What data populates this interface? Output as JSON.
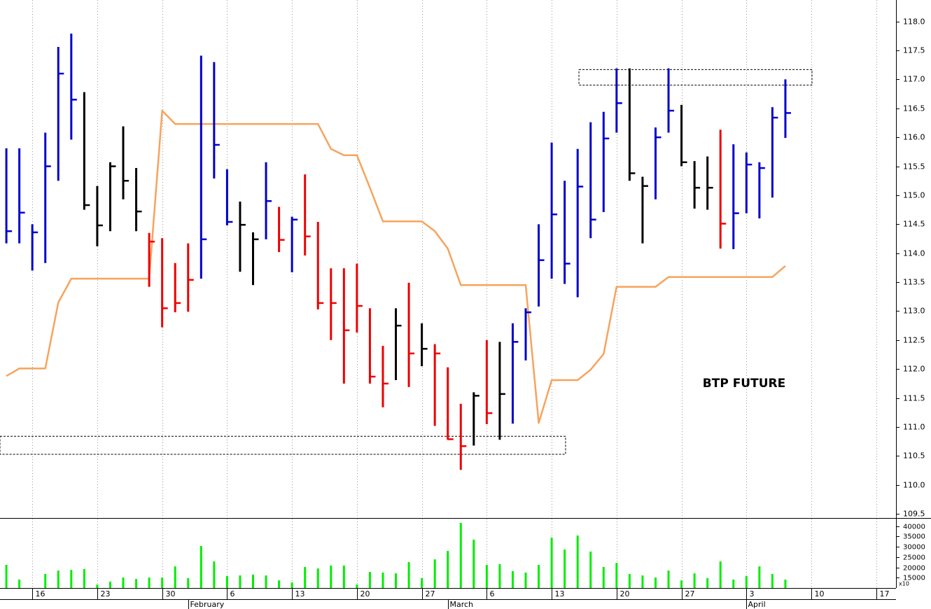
{
  "chart_data": {
    "type": "ohlc",
    "title": "BTP FUTURE",
    "xlim": [
      -0.49,
      68.52
    ],
    "xticks": [
      {
        "value": 2,
        "label": "16"
      },
      {
        "value": 7,
        "label": "23"
      },
      {
        "value": 12,
        "label": "30"
      },
      {
        "value": 17,
        "label": "6"
      },
      {
        "value": 22,
        "label": "13"
      },
      {
        "value": 27,
        "label": "20"
      },
      {
        "value": 32,
        "label": "27"
      },
      {
        "value": 37,
        "label": "6"
      },
      {
        "value": 42,
        "label": "13"
      },
      {
        "value": 47,
        "label": "20"
      },
      {
        "value": 52,
        "label": "27"
      },
      {
        "value": 57,
        "label": "3"
      },
      {
        "value": 62,
        "label": "10"
      },
      {
        "value": 67,
        "label": "17"
      }
    ],
    "month_ticks": [
      {
        "value": 14,
        "label": "February"
      },
      {
        "value": 34,
        "label": "March"
      },
      {
        "value": 57,
        "label": "April"
      }
    ],
    "grid": true,
    "ylim": [
      109.43,
      118.37
    ],
    "yticks": [
      {
        "value": 109.5,
        "label": "109.5"
      },
      {
        "value": 110,
        "label": "110.0"
      },
      110.5,
      {
        "value": 111,
        "label": "111.0"
      },
      111.5,
      {
        "value": 112,
        "label": "112.0"
      },
      112.5,
      {
        "value": 113,
        "label": "113.0"
      },
      113.5,
      {
        "value": 114,
        "label": "114.0"
      },
      114.5,
      {
        "value": 115,
        "label": "115.0"
      },
      115.5,
      {
        "value": 116,
        "label": "116.0"
      },
      116.5,
      {
        "value": 117,
        "label": "117.0"
      },
      117.5,
      {
        "value": 118,
        "label": "118.0"
      }
    ],
    "high": [
      115.81,
      115.81,
      114.5,
      116.08,
      117.56,
      117.79,
      116.78,
      115.16,
      115.57,
      116.19,
      115.47,
      114.35,
      114.26,
      113.83,
      114.17,
      117.41,
      117.3,
      115.45,
      114.89,
      114.36,
      115.57,
      114.8,
      114.63,
      115.36,
      114.54,
      113.74,
      113.74,
      113.82,
      113.05,
      112.4,
      113.05,
      113.49,
      112.79,
      112.43,
      112.03,
      111.4,
      111.6,
      112.5,
      112.47,
      112.79,
      113.05,
      114.5,
      115.91,
      115.25,
      115.8,
      116.26,
      116.44,
      117.19,
      117.19,
      115.32,
      116.17,
      117.19,
      116.56,
      115.59,
      115.67,
      116.13,
      115.88,
      115.74,
      115.57,
      116.52,
      117.0
    ],
    "low": [
      114.17,
      114.17,
      113.7,
      113.83,
      115.25,
      115.96,
      114.75,
      114.12,
      114.38,
      114.93,
      114.38,
      113.42,
      112.72,
      112.98,
      112.99,
      113.56,
      115.29,
      114.48,
      113.68,
      113.45,
      114.24,
      114.02,
      113.67,
      113.96,
      113.03,
      112.5,
      111.75,
      112.63,
      111.75,
      111.34,
      111.81,
      111.69,
      112.05,
      111.02,
      110.78,
      110.26,
      110.68,
      111.05,
      110.78,
      111.06,
      112.15,
      113.08,
      113.56,
      113.47,
      113.24,
      114.26,
      114.71,
      116.08,
      115.25,
      114.17,
      114.93,
      116.08,
      115.5,
      114.77,
      114.75,
      114.08,
      114.07,
      114.69,
      114.6,
      114.96,
      115.99
    ],
    "close": [
      114.38,
      114.7,
      114.36,
      115.5,
      117.1,
      116.65,
      114.83,
      114.48,
      115.5,
      115.25,
      114.72,
      114.2,
      113.05,
      113.14,
      113.54,
      114.24,
      115.87,
      114.54,
      114.49,
      114.24,
      114.9,
      114.23,
      114.58,
      114.29,
      113.14,
      113.14,
      112.67,
      113.09,
      111.87,
      111.75,
      112.75,
      112.27,
      112.35,
      112.27,
      110.79,
      110.67,
      111.54,
      111.24,
      111.57,
      112.47,
      112.98,
      113.88,
      114.67,
      113.82,
      115.15,
      114.58,
      115.98,
      116.59,
      115.38,
      115.16,
      116.0,
      116.46,
      115.57,
      115.13,
      115.13,
      114.51,
      114.69,
      115.53,
      115.47,
      116.34,
      116.42
    ],
    "colors": [
      "#0000cc",
      "#0000cc",
      "#0000cc",
      "#0000cc",
      "#0000cc",
      "#0000cc",
      "#000000",
      "#000000",
      "#000000",
      "#000000",
      "#000000",
      "#ee0000",
      "#ee0000",
      "#ee0000",
      "#ee0000",
      "#0000cc",
      "#0000cc",
      "#0000cc",
      "#000000",
      "#000000",
      "#0000cc",
      "#ee0000",
      "#0000cc",
      "#ee0000",
      "#ee0000",
      "#ee0000",
      "#ee0000",
      "#ee0000",
      "#ee0000",
      "#ee0000",
      "#000000",
      "#ee0000",
      "#000000",
      "#ee0000",
      "#ee0000",
      "#ee0000",
      "#000000",
      "#ee0000",
      "#000000",
      "#0000cc",
      "#0000cc",
      "#0000cc",
      "#0000cc",
      "#0000cc",
      "#0000cc",
      "#0000cc",
      "#0000cc",
      "#0000cc",
      "#000000",
      "#000000",
      "#0000cc",
      "#0000cc",
      "#000000",
      "#000000",
      "#000000",
      "#ee0000",
      "#0000cc",
      "#0000cc",
      "#0000cc",
      "#0000cc",
      "#0000cc"
    ],
    "line": {
      "color": "#f7a35c",
      "values": [
        111.88,
        112.01,
        112.01,
        112.01,
        113.15,
        113.56,
        113.56,
        113.56,
        113.56,
        113.56,
        113.56,
        113.56,
        116.46,
        116.23,
        116.23,
        116.23,
        116.23,
        116.23,
        116.23,
        116.23,
        116.23,
        116.23,
        116.23,
        116.23,
        116.23,
        115.8,
        115.69,
        115.69,
        115.13,
        114.55,
        114.55,
        114.55,
        114.55,
        114.38,
        114.08,
        113.45,
        113.45,
        113.45,
        113.45,
        113.45,
        113.45,
        111.07,
        111.81,
        111.81,
        111.81,
        111.99,
        112.26,
        113.42,
        113.42,
        113.42,
        113.42,
        113.59,
        113.59,
        113.59,
        113.59,
        113.59,
        113.59,
        113.59,
        113.59,
        113.59,
        113.78
      ]
    },
    "zones": [
      {
        "x": [
          44.1,
          62.05
        ],
        "y": [
          116.9,
          117.17
        ]
      },
      {
        "x": [
          -0.49,
          43.07
        ],
        "y": [
          110.53,
          110.84
        ]
      }
    ],
    "volume": {
      "type": "bar",
      "color": "#00ee00",
      "ylim": [
        10000,
        44000
      ],
      "yticks": [
        15000,
        20000,
        25000,
        30000,
        35000,
        40000
      ],
      "unit_label": "x10",
      "values": [
        21200,
        14100,
        null,
        16800,
        18500,
        18800,
        19200,
        11700,
        13100,
        15100,
        14400,
        15100,
        15100,
        20500,
        14800,
        30400,
        22900,
        15800,
        16100,
        16500,
        16100,
        13700,
        12700,
        20200,
        19500,
        20900,
        20900,
        11700,
        17800,
        17500,
        17100,
        22600,
        14800,
        23900,
        28000,
        41600,
        33500,
        21200,
        21600,
        18200,
        17500,
        21200,
        34500,
        28700,
        35500,
        27700,
        20200,
        22200,
        16800,
        16100,
        15100,
        18500,
        13700,
        17100,
        14800,
        22900,
        14100,
        15800,
        20500,
        16800,
        14100
      ]
    }
  }
}
